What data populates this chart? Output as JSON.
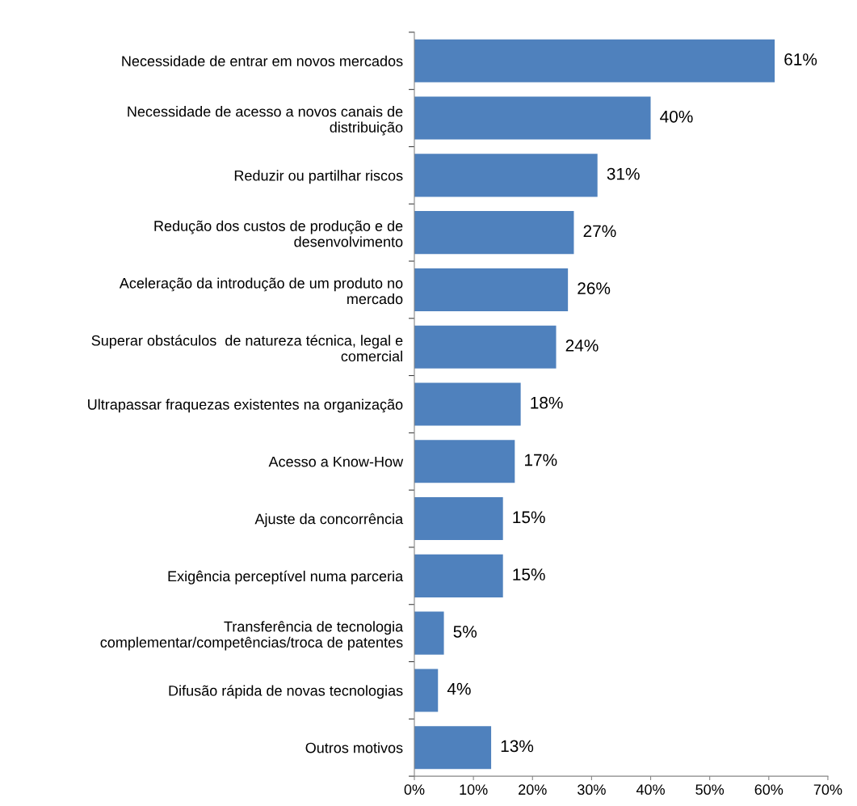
{
  "chart_data": {
    "type": "bar",
    "orientation": "horizontal",
    "categories": [
      "Necessidade de entrar em novos mercados",
      "Necessidade de acesso a novos canais de\ndistribuição",
      "Reduzir ou partilhar riscos",
      "Redução dos custos de produção e de\ndesenvolvimento",
      "Aceleração da introdução de um produto no\nmercado",
      "Superar obstáculos  de natureza técnica, legal e\ncomercial",
      "Ultrapassar fraquezas existentes na organização",
      "Acesso a Know-How",
      "Ajuste da concorrência",
      "Exigência perceptível numa parceria",
      "Transferência de tecnologia\ncomplementar/competências/troca de patentes",
      "Difusão rápida de novas tecnologias",
      "Outros motivos"
    ],
    "values": [
      61,
      40,
      31,
      27,
      26,
      24,
      18,
      17,
      15,
      15,
      5,
      4,
      13
    ],
    "value_labels": [
      "61%",
      "40%",
      "31%",
      "27%",
      "26%",
      "24%",
      "18%",
      "17%",
      "15%",
      "15%",
      "5%",
      "4%",
      "13%"
    ],
    "color": "#4f81bd",
    "xlim": [
      0,
      70
    ],
    "xticks": [
      {
        "value": 0,
        "label": "0%"
      },
      {
        "value": 10,
        "label": "10%"
      },
      {
        "value": 20,
        "label": "20%"
      },
      {
        "value": 30,
        "label": "30%"
      },
      {
        "value": 40,
        "label": "40%"
      },
      {
        "value": 50,
        "label": "50%"
      },
      {
        "value": 60,
        "label": "60%"
      },
      {
        "value": 70,
        "label": "70%"
      }
    ],
    "grid": false,
    "legend": false
  }
}
